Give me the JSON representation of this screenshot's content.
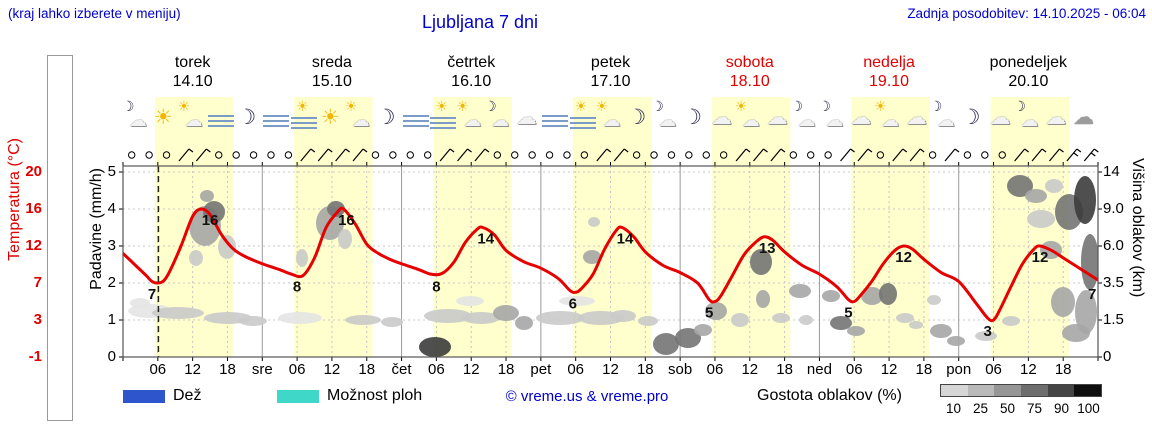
{
  "header": {
    "note": "(kraj lahko izberete v meniju)",
    "title": "Ljubljana 7 dni",
    "updated": "Zadnja posodobitev: 14.10.2025 - 06:04"
  },
  "days": [
    {
      "name": "torek",
      "date": "14.10",
      "red": false
    },
    {
      "name": "sreda",
      "date": "15.10",
      "red": false
    },
    {
      "name": "četrtek",
      "date": "16.10",
      "red": false
    },
    {
      "name": "petek",
      "date": "17.10",
      "red": false
    },
    {
      "name": "sobota",
      "date": "18.10",
      "red": true
    },
    {
      "name": "nedelja",
      "date": "19.10",
      "red": true
    },
    {
      "name": "ponedeljek",
      "date": "20.10",
      "red": false
    }
  ],
  "axes": {
    "temp": {
      "label": "Temperatura (°C)",
      "ticks": [
        "20",
        "16",
        "12",
        "7",
        "3",
        "-1"
      ]
    },
    "precip": {
      "label": "Padavine (mm/h)",
      "ticks": [
        "5",
        "4",
        "3",
        "2",
        "1",
        "0"
      ]
    },
    "cloud_height": {
      "label": "Višina oblakov (km)",
      "ticks": [
        "14",
        "9.0",
        "6.0",
        "3.5",
        "1.5",
        "0"
      ]
    },
    "x_ticks": [
      {
        "h": 6,
        "label": "06"
      },
      {
        "h": 12,
        "label": "12"
      },
      {
        "h": 18,
        "label": "18"
      },
      {
        "h": 24,
        "label": "sre"
      },
      {
        "h": 30,
        "label": "06"
      },
      {
        "h": 36,
        "label": "12"
      },
      {
        "h": 42,
        "label": "18"
      },
      {
        "h": 48,
        "label": "čet"
      },
      {
        "h": 54,
        "label": "06"
      },
      {
        "h": 60,
        "label": "12"
      },
      {
        "h": 66,
        "label": "18"
      },
      {
        "h": 72,
        "label": "pet"
      },
      {
        "h": 78,
        "label": "06"
      },
      {
        "h": 84,
        "label": "12"
      },
      {
        "h": 90,
        "label": "18"
      },
      {
        "h": 96,
        "label": "sob"
      },
      {
        "h": 102,
        "label": "06"
      },
      {
        "h": 108,
        "label": "12"
      },
      {
        "h": 114,
        "label": "18"
      },
      {
        "h": 120,
        "label": "ned"
      },
      {
        "h": 126,
        "label": "06"
      },
      {
        "h": 132,
        "label": "12"
      },
      {
        "h": 138,
        "label": "18"
      },
      {
        "h": 144,
        "label": "pon"
      },
      {
        "h": 150,
        "label": "06"
      },
      {
        "h": 156,
        "label": "12"
      },
      {
        "h": 162,
        "label": "18"
      }
    ]
  },
  "legend": {
    "rain_label": "Dež",
    "rain_color": "#2f55cc",
    "showers_label": "Možnost ploh",
    "showers_color": "#3fd8c8",
    "copyright": "© vreme.us & vreme.pro",
    "cloud_density_label": "Gostota oblakov (%)",
    "density_ticks": [
      "10",
      "25",
      "50",
      "75",
      "90",
      "100"
    ],
    "density_shades": [
      "#d6d6d6",
      "#b9b9b9",
      "#969696",
      "#6e6e6e",
      "#454545",
      "#0f0f0f"
    ]
  },
  "colors": {
    "accent_blue": "#0000cc",
    "weekend_red": "#e00000",
    "temperature_line": "#e60000",
    "day_band": "#ffffce"
  },
  "chart_data": {
    "type": "line",
    "title": "Ljubljana 7 dni",
    "x_span_hours": 168,
    "x_start": "torek 14.10 00:00",
    "current_time_h": 6.1,
    "daylight": [
      5.5,
      19
    ],
    "temp_axis_temps": [
      20,
      16,
      12,
      7,
      3,
      -1
    ],
    "precip_axis_values": [
      5,
      4,
      3,
      2,
      1,
      0
    ],
    "cloud_axis_km": [
      14,
      9.0,
      6.0,
      3.5,
      1.5,
      0
    ],
    "temperature_series": [
      [
        0,
        11
      ],
      [
        2,
        9.5
      ],
      [
        4,
        8
      ],
      [
        5,
        7.2
      ],
      [
        6,
        7
      ],
      [
        7,
        7.3
      ],
      [
        8,
        8.5
      ],
      [
        10,
        12
      ],
      [
        12,
        15.2
      ],
      [
        13.5,
        16
      ],
      [
        15,
        15.4
      ],
      [
        17,
        13.2
      ],
      [
        19,
        11.6
      ],
      [
        21,
        10.6
      ],
      [
        24,
        9.6
      ],
      [
        27,
        8.8
      ],
      [
        29,
        8.2
      ],
      [
        31,
        8
      ],
      [
        33,
        10.4
      ],
      [
        35,
        14
      ],
      [
        37,
        15.7
      ],
      [
        38,
        16
      ],
      [
        40,
        14.4
      ],
      [
        42,
        12.2
      ],
      [
        44,
        11
      ],
      [
        46,
        10.2
      ],
      [
        48,
        9.6
      ],
      [
        51,
        8.8
      ],
      [
        53,
        8.2
      ],
      [
        55,
        8.3
      ],
      [
        57,
        9.8
      ],
      [
        59,
        12.4
      ],
      [
        61,
        13.8
      ],
      [
        62,
        14
      ],
      [
        64,
        13.2
      ],
      [
        66,
        11.4
      ],
      [
        69,
        9.9
      ],
      [
        72,
        9
      ],
      [
        75,
        7.6
      ],
      [
        77,
        6.2
      ],
      [
        78,
        6
      ],
      [
        79,
        6.4
      ],
      [
        81,
        8.2
      ],
      [
        83,
        11.6
      ],
      [
        85,
        13.7
      ],
      [
        86,
        14
      ],
      [
        88,
        13
      ],
      [
        90,
        11.2
      ],
      [
        93,
        9.4
      ],
      [
        96,
        8.4
      ],
      [
        99,
        7
      ],
      [
        101,
        5.2
      ],
      [
        102,
        5
      ],
      [
        103,
        5.6
      ],
      [
        105,
        8
      ],
      [
        107,
        10.8
      ],
      [
        109,
        12.4
      ],
      [
        110.5,
        13
      ],
      [
        112,
        12.6
      ],
      [
        114,
        11.2
      ],
      [
        117,
        9.4
      ],
      [
        120,
        8.2
      ],
      [
        123,
        6.6
      ],
      [
        125,
        5.2
      ],
      [
        126,
        5
      ],
      [
        127,
        5.6
      ],
      [
        129,
        7.2
      ],
      [
        131,
        9.6
      ],
      [
        133,
        11.4
      ],
      [
        134.5,
        12
      ],
      [
        136,
        11.6
      ],
      [
        138,
        10.2
      ],
      [
        141,
        8.4
      ],
      [
        144,
        7.2
      ],
      [
        147,
        4.8
      ],
      [
        149,
        3.2
      ],
      [
        150,
        3
      ],
      [
        151,
        4
      ],
      [
        153,
        6.6
      ],
      [
        155,
        9.6
      ],
      [
        157,
        11.6
      ],
      [
        158,
        12
      ],
      [
        160,
        11.4
      ],
      [
        162,
        10.4
      ],
      [
        164,
        9.4
      ],
      [
        166,
        8.4
      ],
      [
        168,
        7.4
      ]
    ],
    "temp_labels": [
      {
        "h": 5,
        "text": "7"
      },
      {
        "h": 15,
        "text": "16"
      },
      {
        "h": 30,
        "text": "8"
      },
      {
        "h": 38.5,
        "text": "16"
      },
      {
        "h": 54,
        "text": "8"
      },
      {
        "h": 62.5,
        "text": "14"
      },
      {
        "h": 77.5,
        "text": "6"
      },
      {
        "h": 86.5,
        "text": "14"
      },
      {
        "h": 101,
        "text": "5"
      },
      {
        "h": 111,
        "text": "13"
      },
      {
        "h": 125,
        "text": "5"
      },
      {
        "h": 134.5,
        "text": "12"
      },
      {
        "h": 149,
        "text": "3"
      },
      {
        "h": 158,
        "text": "12"
      },
      {
        "h": 167,
        "text": "7"
      }
    ],
    "icons": [
      "moon-cloud",
      "sun",
      "sun-cloud",
      "fog",
      "moon",
      "fog",
      "fog-sun",
      "sun",
      "sun-cloud",
      "moon",
      "fog",
      "fog-sun",
      "sun-cloud",
      "moon-cloud",
      "cloud",
      "fog",
      "fog-sun",
      "sun-cloud",
      "moon",
      "moon-cloud",
      "moon",
      "cloud",
      "sun-cloud",
      "cloud",
      "moon-cloud",
      "moon-cloud",
      "cloud",
      "sun-cloud",
      "cloud",
      "moon-cloud",
      "moon",
      "cloud",
      "moon-cloud",
      "cloud",
      "gray-cloud"
    ],
    "wind": "ooowwooooowwwwoooowwwoooooowwoooooowwwooowwowwowooowwwss",
    "cloud_shades": {
      "1": "#e4e4e4",
      "2": "#cacaca",
      "3": "#a6a6a6",
      "4": "#747474",
      "5": "#3c3c3c"
    },
    "clouds": [
      [
        150,
        311,
        22,
        7,
        1
      ],
      [
        178,
        313,
        26,
        6,
        2
      ],
      [
        140,
        303,
        10,
        5,
        1
      ],
      [
        205,
        226,
        16,
        20,
        3
      ],
      [
        214,
        212,
        11,
        11,
        4
      ],
      [
        227,
        247,
        9,
        12,
        2
      ],
      [
        196,
        258,
        7,
        8,
        2
      ],
      [
        207,
        196,
        7,
        6,
        3
      ],
      [
        228,
        318,
        24,
        6,
        2
      ],
      [
        253,
        321,
        14,
        5,
        2
      ],
      [
        300,
        318,
        22,
        6,
        1
      ],
      [
        330,
        223,
        14,
        17,
        3
      ],
      [
        336,
        209,
        9,
        8,
        4
      ],
      [
        345,
        239,
        7,
        10,
        2
      ],
      [
        302,
        258,
        6,
        9,
        2
      ],
      [
        363,
        320,
        18,
        5,
        2
      ],
      [
        392,
        322,
        11,
        5,
        2
      ],
      [
        435,
        347,
        16,
        10,
        5
      ],
      [
        448,
        316,
        24,
        7,
        2
      ],
      [
        481,
        318,
        19,
        6,
        2
      ],
      [
        506,
        313,
        13,
        8,
        3
      ],
      [
        524,
        323,
        9,
        7,
        3
      ],
      [
        470,
        301,
        14,
        5,
        1
      ],
      [
        560,
        318,
        24,
        7,
        2
      ],
      [
        592,
        257,
        9,
        7,
        3
      ],
      [
        601,
        318,
        23,
        7,
        2
      ],
      [
        577,
        301,
        18,
        5,
        1
      ],
      [
        623,
        316,
        13,
        6,
        2
      ],
      [
        594,
        222,
        6,
        5,
        2
      ],
      [
        648,
        321,
        10,
        5,
        2
      ],
      [
        666,
        344,
        13,
        11,
        4
      ],
      [
        688,
        338,
        13,
        10,
        4
      ],
      [
        703,
        330,
        9,
        6,
        3
      ],
      [
        716,
        311,
        11,
        9,
        3
      ],
      [
        740,
        320,
        9,
        7,
        2
      ],
      [
        761,
        262,
        11,
        13,
        4
      ],
      [
        763,
        299,
        7,
        9,
        3
      ],
      [
        781,
        318,
        9,
        5,
        2
      ],
      [
        800,
        291,
        11,
        7,
        3
      ],
      [
        806,
        320,
        7,
        5,
        2
      ],
      [
        831,
        296,
        9,
        6,
        3
      ],
      [
        841,
        323,
        11,
        7,
        4
      ],
      [
        856,
        331,
        9,
        5,
        3
      ],
      [
        872,
        296,
        11,
        9,
        3
      ],
      [
        888,
        294,
        9,
        11,
        4
      ],
      [
        905,
        318,
        9,
        5,
        2
      ],
      [
        916,
        325,
        7,
        4,
        2
      ],
      [
        934,
        300,
        7,
        5,
        2
      ],
      [
        941,
        331,
        11,
        7,
        3
      ],
      [
        956,
        341,
        9,
        5,
        3
      ],
      [
        986,
        336,
        11,
        5,
        2
      ],
      [
        1020,
        186,
        13,
        11,
        4
      ],
      [
        1036,
        196,
        11,
        7,
        3
      ],
      [
        1054,
        186,
        9,
        7,
        2
      ],
      [
        1041,
        219,
        14,
        9,
        2
      ],
      [
        1069,
        212,
        14,
        18,
        4
      ],
      [
        1085,
        200,
        11,
        24,
        5
      ],
      [
        1090,
        262,
        9,
        28,
        4
      ],
      [
        1086,
        312,
        11,
        22,
        3
      ],
      [
        1076,
        333,
        14,
        9,
        3
      ],
      [
        1011,
        321,
        9,
        5,
        2
      ],
      [
        1051,
        250,
        11,
        9,
        3
      ],
      [
        1063,
        302,
        12,
        15,
        3
      ]
    ]
  }
}
